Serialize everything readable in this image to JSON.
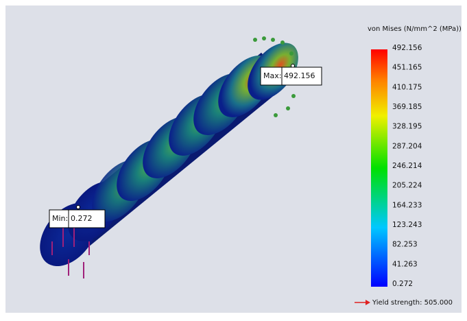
{
  "legend": {
    "title": "von Mises (N/mm^2 (MPa))",
    "labels": [
      "492.156",
      "451.165",
      "410.175",
      "369.185",
      "328.195",
      "287.204",
      "246.214",
      "205.224",
      "164.233",
      "123.243",
      "82.253",
      "41.263",
      "0.272"
    ],
    "yield_strength": "Yield strength: 505.000"
  },
  "probes": {
    "max": {
      "label": "Max:",
      "value": "492.156"
    },
    "min": {
      "label": "Min:",
      "value": "0.272"
    }
  }
}
